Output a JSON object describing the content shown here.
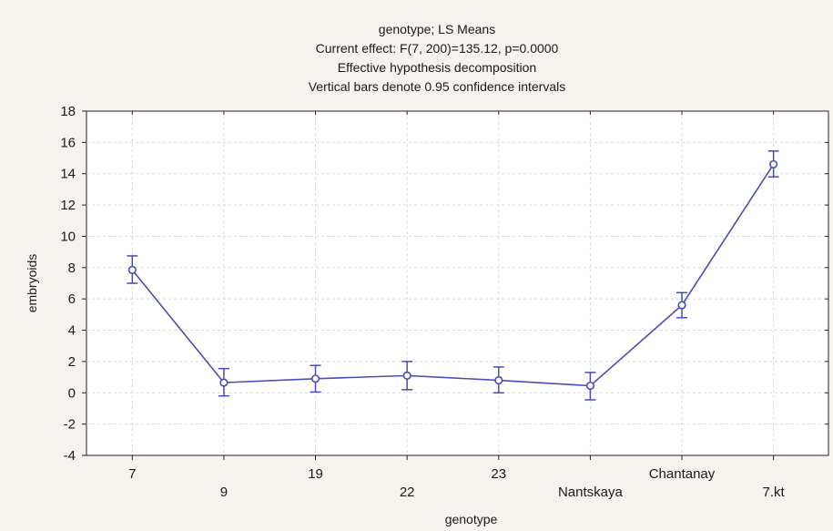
{
  "chart_data": {
    "type": "line",
    "title_lines": [
      "genotype; LS Means",
      "Current effect: F(7, 200)=135.12, p=0.0000",
      "Effective hypothesis decomposition",
      "Vertical bars denote 0.95 confidence intervals"
    ],
    "xlabel": "genotype",
    "ylabel": "embryoids",
    "categories": [
      "7",
      "9",
      "19",
      "22",
      "23",
      "Nantskaya",
      "Chantanay",
      "7.kt"
    ],
    "y_ticks": [
      "18",
      "16",
      "14",
      "12",
      "10",
      "8",
      "6",
      "4",
      "2",
      "0",
      "-2",
      "-4"
    ],
    "ylim": [
      -4,
      18
    ],
    "grid": true,
    "series": [
      {
        "values": [
          7.85,
          0.65,
          0.9,
          1.1,
          0.8,
          0.45,
          5.6,
          14.6
        ],
        "ci_low": [
          7.0,
          -0.2,
          0.05,
          0.2,
          0.0,
          -0.45,
          4.8,
          13.8
        ],
        "ci_high": [
          8.75,
          1.55,
          1.75,
          2.0,
          1.65,
          1.3,
          6.4,
          15.45
        ]
      }
    ],
    "line_color": "#4b4bb8",
    "background": "#f6f3ee"
  }
}
